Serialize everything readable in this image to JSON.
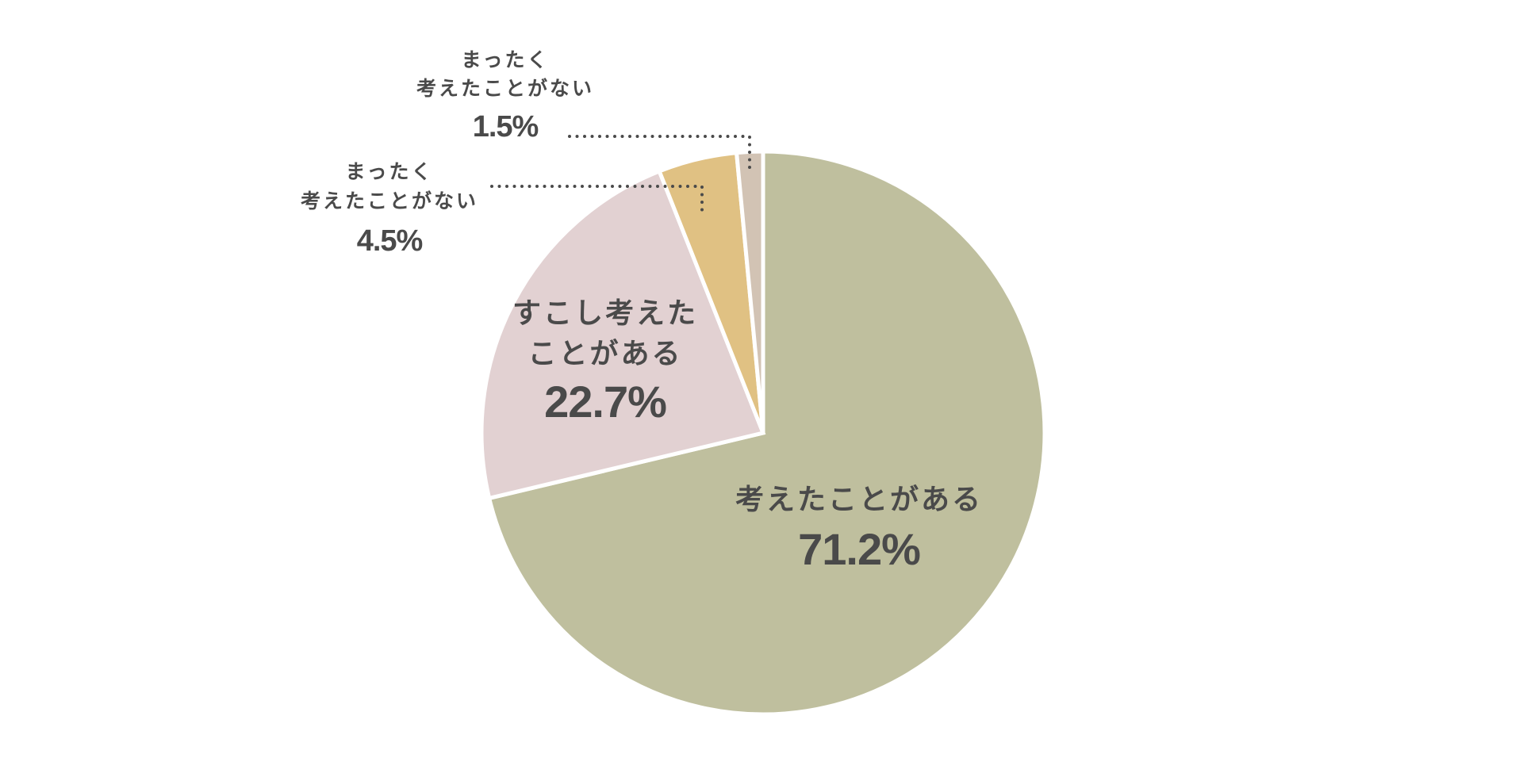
{
  "chart_data": {
    "type": "pie",
    "start": "12 o'clock",
    "direction": "clockwise",
    "slices": [
      {
        "label": [
          "考えたことがある"
        ],
        "value": 71.2,
        "value_text": "71.2%",
        "color": "#bfbf9e"
      },
      {
        "label": [
          "すこし考えた",
          "ことがある"
        ],
        "value": 22.7,
        "value_text": "22.7%",
        "color": "#e2d1d2"
      },
      {
        "label": [
          "まったく",
          "考えたことがない"
        ],
        "value": 4.5,
        "value_text": "4.5%",
        "color": "#e0c183"
      },
      {
        "label": [
          "まったく",
          "考えたことがない"
        ],
        "value": 1.5,
        "value_text": "1.5%",
        "color": "#d2c3b4"
      }
    ]
  }
}
